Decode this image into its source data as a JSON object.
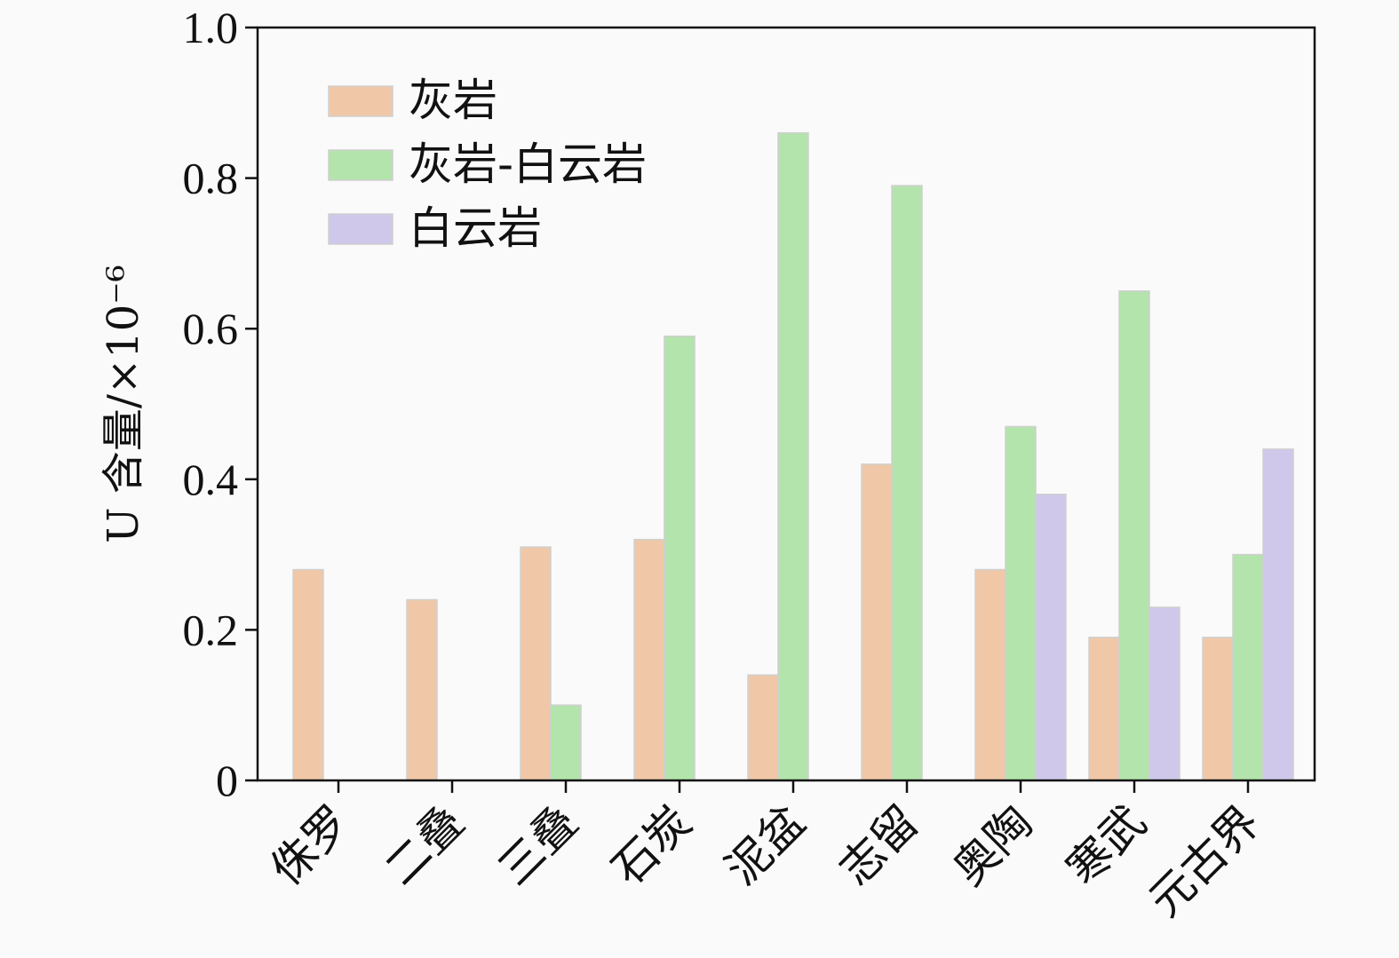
{
  "chart_data": {
    "type": "bar",
    "categories": [
      "侏罗",
      "二叠",
      "三叠",
      "石炭",
      "泥盆",
      "志留",
      "奥陶",
      "寒武",
      "元古界"
    ],
    "series": [
      {
        "name": "灰岩",
        "color": "#f0c8a8",
        "values": [
          0.28,
          0.24,
          0.31,
          0.32,
          0.14,
          0.42,
          0.28,
          0.19,
          0.19
        ]
      },
      {
        "name": "灰岩-白云岩",
        "color": "#b3e4ac",
        "values": [
          null,
          null,
          0.1,
          0.59,
          0.86,
          0.79,
          0.47,
          0.65,
          0.3
        ]
      },
      {
        "name": "白云岩",
        "color": "#cfc8ea",
        "values": [
          null,
          null,
          null,
          null,
          null,
          null,
          0.38,
          0.23,
          0.44
        ]
      }
    ],
    "ylabel": "U 含量/×10⁻⁶",
    "ylim": [
      0,
      1.0
    ],
    "yticks": [
      {
        "value": 0,
        "label": "0"
      },
      {
        "value": 0.2,
        "label": "0.2"
      },
      {
        "value": 0.4,
        "label": "0.4"
      },
      {
        "value": 0.6,
        "label": "0.6"
      },
      {
        "value": 0.8,
        "label": "0.8"
      },
      {
        "value": 1.0,
        "label": "1.0"
      }
    ],
    "legend_position": "top-left",
    "grid": false
  }
}
